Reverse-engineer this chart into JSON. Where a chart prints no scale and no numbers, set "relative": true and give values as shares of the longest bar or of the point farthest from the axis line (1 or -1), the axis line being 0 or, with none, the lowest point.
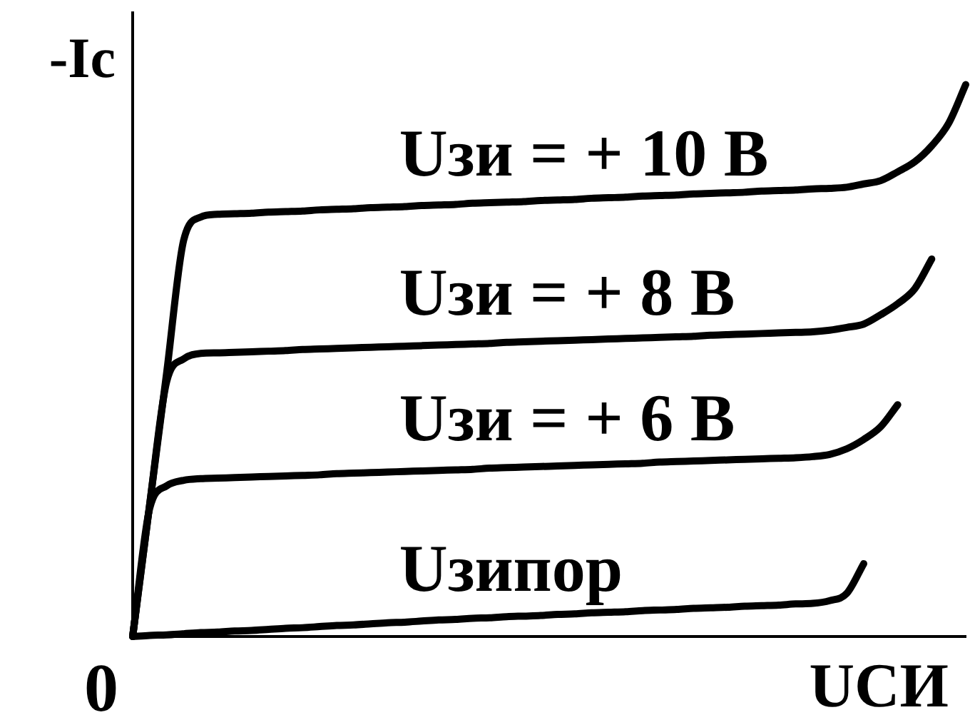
{
  "chart_data": {
    "type": "line",
    "relative": true,
    "xlabel": "UСИ",
    "ylabel": "-Ic",
    "annotations": [
      "0"
    ],
    "categories": [
      null,
      null,
      null,
      null,
      null,
      null,
      null,
      null,
      null,
      null,
      null,
      null,
      null,
      null,
      null,
      null,
      null,
      null,
      null,
      null,
      null,
      null,
      null,
      null,
      null,
      null,
      null,
      null,
      null,
      null,
      null,
      null,
      null,
      null,
      null,
      null,
      null,
      null,
      null,
      null,
      null,
      null,
      null,
      null,
      null,
      null,
      null,
      null,
      null,
      null
    ],
    "series": [
      {
        "name": "Uзи = + 10 В",
        "color": "#000000",
        "values": [
          0,
          0.239,
          0.478,
          0.718,
          0.76,
          0.765,
          0.766,
          0.767,
          0.769,
          0.77,
          0.771,
          0.773,
          0.774,
          0.775,
          0.777,
          0.778,
          0.779,
          0.781,
          0.782,
          0.783,
          0.785,
          0.786,
          0.787,
          0.788,
          0.79,
          0.791,
          0.792,
          0.794,
          0.795,
          0.796,
          0.798,
          0.799,
          0.8,
          0.802,
          0.803,
          0.804,
          0.805,
          0.807,
          0.808,
          0.809,
          0.811,
          0.812,
          0.814,
          0.82,
          0.826,
          0.842,
          0.86,
          0.889,
          0.93,
          1
        ]
      },
      {
        "name": "Uзи = + 8 В",
        "color": "#000000",
        "values": [
          0,
          0.239,
          0.462,
          0.503,
          0.513,
          0.514,
          0.515,
          0.516,
          0.517,
          0.518,
          0.52,
          0.521,
          0.522,
          0.523,
          0.524,
          0.525,
          0.526,
          0.527,
          0.528,
          0.529,
          0.53,
          0.531,
          0.533,
          0.534,
          0.535,
          0.536,
          0.537,
          0.538,
          0.539,
          0.54,
          0.541,
          0.542,
          0.543,
          0.544,
          0.546,
          0.547,
          0.548,
          0.549,
          0.55,
          0.551,
          0.552,
          0.555,
          0.56,
          0.566,
          0.583,
          0.603,
          0.63,
          0.684,
          null,
          null
        ]
      },
      {
        "name": "Uзи = + 6 В",
        "color": "#000000",
        "values": [
          0,
          0.232,
          0.273,
          0.283,
          0.286,
          0.287,
          0.288,
          0.289,
          0.29,
          0.291,
          0.292,
          0.293,
          0.295,
          0.296,
          0.297,
          0.298,
          0.299,
          0.3,
          0.301,
          0.302,
          0.303,
          0.305,
          0.306,
          0.307,
          0.308,
          0.309,
          0.31,
          0.311,
          0.312,
          0.313,
          0.314,
          0.316,
          0.317,
          0.318,
          0.319,
          0.32,
          0.321,
          0.322,
          0.323,
          0.324,
          0.326,
          0.33,
          0.34,
          0.357,
          0.38,
          0.42,
          null,
          null,
          null,
          null
        ]
      },
      {
        "name": "Uзипор",
        "color": "#000000",
        "values": [
          0,
          0.002,
          0.003,
          0.005,
          0.007,
          0.008,
          0.01,
          0.011,
          0.013,
          0.015,
          0.016,
          0.018,
          0.02,
          0.021,
          0.023,
          0.025,
          0.026,
          0.028,
          0.03,
          0.031,
          0.033,
          0.034,
          0.036,
          0.037,
          0.038,
          0.04,
          0.041,
          0.043,
          0.044,
          0.045,
          0.047,
          0.048,
          0.049,
          0.051,
          0.052,
          0.053,
          0.055,
          0.056,
          0.057,
          0.059,
          0.06,
          0.065,
          0.078,
          0.132,
          null,
          null,
          null,
          null,
          null,
          null
        ]
      }
    ]
  }
}
